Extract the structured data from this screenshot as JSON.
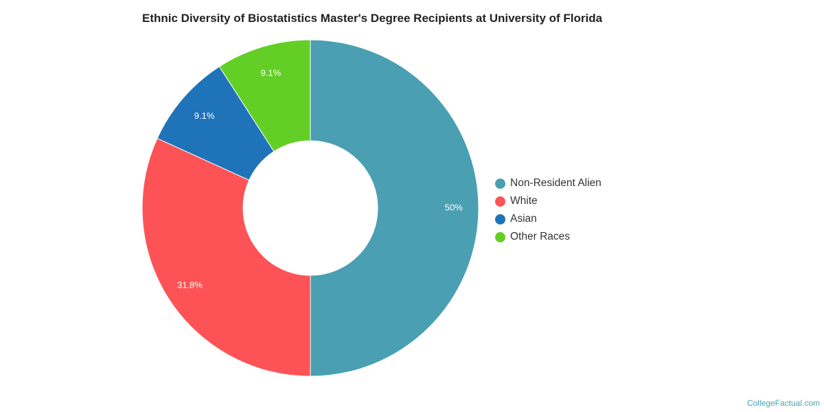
{
  "chart_data": {
    "type": "pie",
    "title": "Ethnic Diversity of Biostatistics Master's Degree Recipients at University of Florida",
    "donut": true,
    "legend_position": "right",
    "slices": [
      {
        "label": "Non-Resident Alien",
        "value": 50,
        "display": "50%",
        "color": "#4a9fb2"
      },
      {
        "label": "White",
        "value": 31.8,
        "display": "31.8%",
        "color": "#fd5356"
      },
      {
        "label": "Asian",
        "value": 9.1,
        "display": "9.1%",
        "color": "#1f73b9"
      },
      {
        "label": "Other Races",
        "value": 9.1,
        "display": "9.1%",
        "color": "#63cf26"
      }
    ]
  },
  "source": "CollegeFactual.com"
}
